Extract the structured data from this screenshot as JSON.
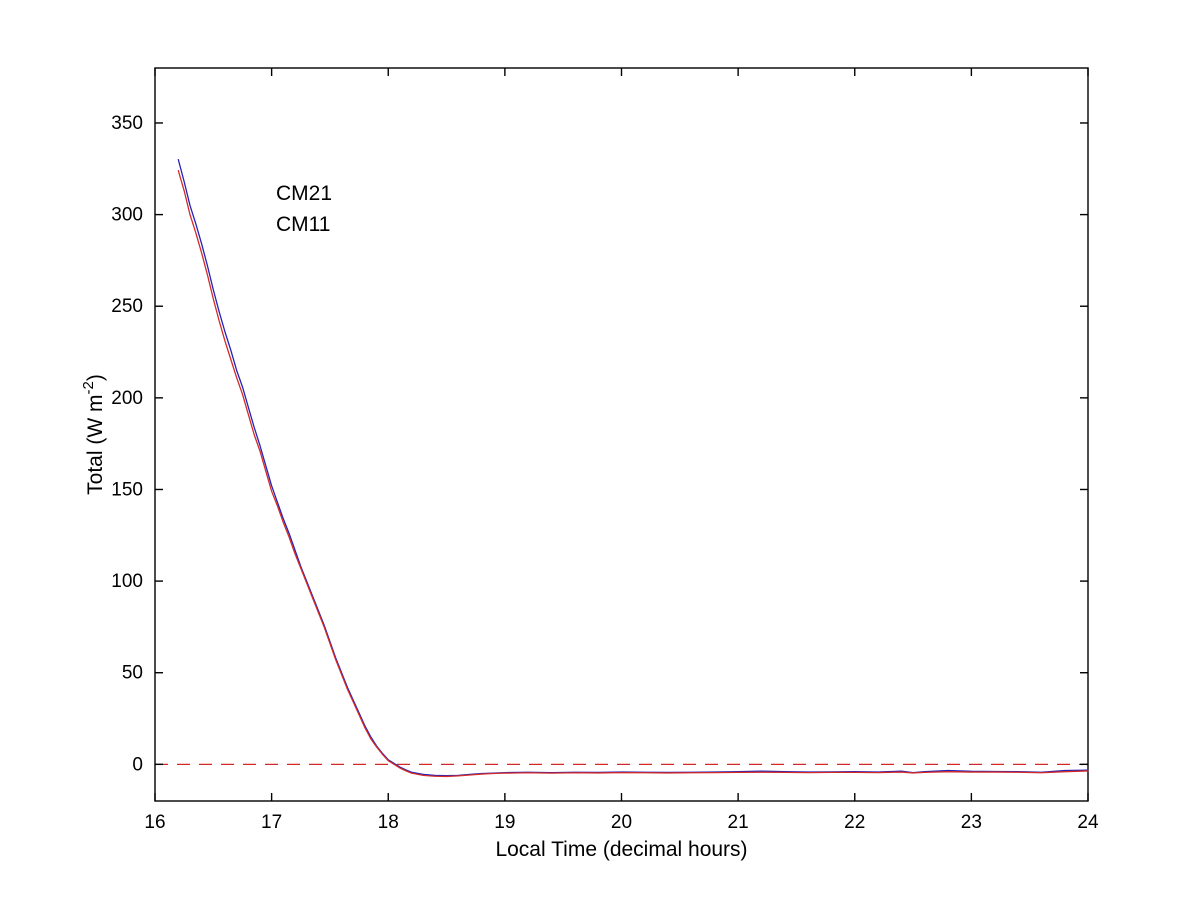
{
  "figure": {
    "background": "#ffffff"
  },
  "chart_data": {
    "type": "line",
    "title": "",
    "xlabel": "Local Time (decimal hours)",
    "ylabel": "Total (W m^-2)",
    "ylabel_parts": {
      "prefix": "Total (W m",
      "sup": "-2",
      "suffix": ")"
    },
    "xlim": [
      16,
      24
    ],
    "ylim": [
      -20,
      380
    ],
    "xticks": [
      16,
      17,
      18,
      19,
      20,
      21,
      22,
      23,
      24
    ],
    "yticks": [
      0,
      50,
      100,
      150,
      200,
      250,
      300,
      350
    ],
    "grid": false,
    "axis_color": "#000000",
    "legend": {
      "position": "inside-top-left",
      "entries": [
        {
          "label": "CM21",
          "color": "#2323bb"
        },
        {
          "label": "CM11",
          "color": "#d32a27"
        }
      ]
    },
    "zero_line": {
      "y": 0,
      "color": "#d32a27",
      "style": "dashed"
    },
    "series": [
      {
        "name": "CM21",
        "color": "#2323bb",
        "points": [
          [
            16.2,
            330
          ],
          [
            16.25,
            318
          ],
          [
            16.3,
            305
          ],
          [
            16.35,
            295
          ],
          [
            16.4,
            284
          ],
          [
            16.45,
            272
          ],
          [
            16.5,
            259
          ],
          [
            16.55,
            247
          ],
          [
            16.6,
            236
          ],
          [
            16.65,
            226
          ],
          [
            16.7,
            215
          ],
          [
            16.75,
            206
          ],
          [
            16.8,
            195
          ],
          [
            16.85,
            184
          ],
          [
            16.9,
            174
          ],
          [
            16.95,
            163
          ],
          [
            17.0,
            152
          ],
          [
            17.05,
            143
          ],
          [
            17.1,
            134
          ],
          [
            17.15,
            126
          ],
          [
            17.2,
            117
          ],
          [
            17.25,
            108
          ],
          [
            17.3,
            100
          ],
          [
            17.35,
            92
          ],
          [
            17.4,
            84
          ],
          [
            17.45,
            76
          ],
          [
            17.5,
            67
          ],
          [
            17.55,
            58
          ],
          [
            17.6,
            50
          ],
          [
            17.65,
            42
          ],
          [
            17.7,
            35
          ],
          [
            17.75,
            28
          ],
          [
            17.8,
            21
          ],
          [
            17.85,
            15
          ],
          [
            17.9,
            10
          ],
          [
            17.95,
            6
          ],
          [
            18.0,
            2.5
          ],
          [
            18.05,
            0.5
          ],
          [
            18.1,
            -1.5
          ],
          [
            18.15,
            -3
          ],
          [
            18.2,
            -4.3
          ],
          [
            18.3,
            -5.5
          ],
          [
            18.4,
            -6
          ],
          [
            18.5,
            -6.2
          ],
          [
            18.6,
            -6
          ],
          [
            18.7,
            -5.5
          ],
          [
            18.8,
            -5
          ],
          [
            18.9,
            -4.8
          ],
          [
            19.0,
            -4.5
          ],
          [
            19.2,
            -4.3
          ],
          [
            19.4,
            -4.5
          ],
          [
            19.6,
            -4.3
          ],
          [
            19.8,
            -4.4
          ],
          [
            20.0,
            -4.2
          ],
          [
            20.2,
            -4.3
          ],
          [
            20.4,
            -4.4
          ],
          [
            20.6,
            -4.3
          ],
          [
            20.8,
            -4.2
          ],
          [
            21.0,
            -4.0
          ],
          [
            21.2,
            -3.7
          ],
          [
            21.4,
            -4.0
          ],
          [
            21.6,
            -4.2
          ],
          [
            21.8,
            -4.1
          ],
          [
            22.0,
            -4.0
          ],
          [
            22.2,
            -4.2
          ],
          [
            22.4,
            -3.7
          ],
          [
            22.5,
            -4.5
          ],
          [
            22.6,
            -4.0
          ],
          [
            22.8,
            -3.4
          ],
          [
            23.0,
            -3.8
          ],
          [
            23.2,
            -3.9
          ],
          [
            23.4,
            -4.0
          ],
          [
            23.6,
            -4.3
          ],
          [
            23.8,
            -3.4
          ],
          [
            24.0,
            -3.2
          ]
        ]
      },
      {
        "name": "CM11",
        "color": "#d32a27",
        "points": [
          [
            16.2,
            324
          ],
          [
            16.25,
            313
          ],
          [
            16.3,
            300
          ],
          [
            16.35,
            290
          ],
          [
            16.4,
            279
          ],
          [
            16.45,
            267
          ],
          [
            16.5,
            254
          ],
          [
            16.55,
            242
          ],
          [
            16.6,
            231
          ],
          [
            16.65,
            221
          ],
          [
            16.7,
            211
          ],
          [
            16.75,
            202
          ],
          [
            16.8,
            191
          ],
          [
            16.85,
            180
          ],
          [
            16.9,
            171
          ],
          [
            16.95,
            160
          ],
          [
            17.0,
            149
          ],
          [
            17.05,
            141
          ],
          [
            17.1,
            132
          ],
          [
            17.15,
            124
          ],
          [
            17.2,
            115
          ],
          [
            17.25,
            107
          ],
          [
            17.3,
            99
          ],
          [
            17.35,
            91
          ],
          [
            17.4,
            83
          ],
          [
            17.45,
            75
          ],
          [
            17.5,
            66
          ],
          [
            17.55,
            57
          ],
          [
            17.6,
            49
          ],
          [
            17.65,
            41
          ],
          [
            17.7,
            34
          ],
          [
            17.75,
            27
          ],
          [
            17.8,
            20
          ],
          [
            17.85,
            14
          ],
          [
            17.9,
            9.5
          ],
          [
            17.95,
            5.5
          ],
          [
            18.0,
            2
          ],
          [
            18.05,
            0
          ],
          [
            18.1,
            -2
          ],
          [
            18.15,
            -3.5
          ],
          [
            18.2,
            -4.8
          ],
          [
            18.3,
            -6
          ],
          [
            18.4,
            -6.5
          ],
          [
            18.5,
            -6.6
          ],
          [
            18.6,
            -6.3
          ],
          [
            18.7,
            -5.8
          ],
          [
            18.8,
            -5.3
          ],
          [
            18.9,
            -5.0
          ],
          [
            19.0,
            -4.8
          ],
          [
            19.2,
            -4.6
          ],
          [
            19.4,
            -4.8
          ],
          [
            19.6,
            -4.6
          ],
          [
            19.8,
            -4.7
          ],
          [
            20.0,
            -4.5
          ],
          [
            20.2,
            -4.6
          ],
          [
            20.4,
            -4.7
          ],
          [
            20.6,
            -4.6
          ],
          [
            20.8,
            -4.5
          ],
          [
            21.0,
            -4.4
          ],
          [
            21.2,
            -4.3
          ],
          [
            21.4,
            -4.4
          ],
          [
            21.6,
            -4.5
          ],
          [
            21.8,
            -4.4
          ],
          [
            22.0,
            -4.4
          ],
          [
            22.2,
            -4.5
          ],
          [
            22.4,
            -4.2
          ],
          [
            22.5,
            -4.7
          ],
          [
            22.6,
            -4.4
          ],
          [
            22.8,
            -4.0
          ],
          [
            23.0,
            -4.2
          ],
          [
            23.2,
            -4.2
          ],
          [
            23.4,
            -4.3
          ],
          [
            23.6,
            -4.6
          ],
          [
            23.8,
            -4.0
          ],
          [
            24.0,
            -3.6
          ]
        ]
      }
    ]
  }
}
